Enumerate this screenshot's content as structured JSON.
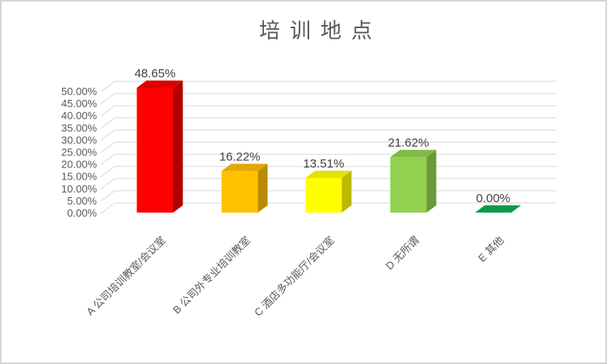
{
  "window": {
    "background": "#FFFFFF",
    "border_color": "#D6D6D6"
  },
  "chart_data": {
    "type": "bar",
    "projection": "3d-column",
    "title": "培训地点",
    "legend": "none",
    "grid": true,
    "gridline_color": "#D9D9D9",
    "axis_text_color": "#595959",
    "data_label_color": "#404040",
    "title_color": "#595959",
    "categories": [
      "A 公司培训教室/会议室",
      "B 公司外专业培训教室",
      "C 酒店多功能厅/会议室",
      "D 无所谓",
      "E 其他"
    ],
    "values": [
      48.65,
      16.22,
      13.51,
      21.62,
      0.0
    ],
    "xlabel": "",
    "ylabel": "",
    "ylim": [
      0,
      50
    ],
    "y_step": 5,
    "y_ticks": [
      "50.00%",
      "45.00%",
      "40.00%",
      "35.00%",
      "30.00%",
      "25.00%",
      "20.00%",
      "15.00%",
      "10.00%",
      "5.00%",
      "0.00%"
    ],
    "series": [
      {
        "category": "A 公司培训教室/会议室",
        "value": 48.65,
        "label": "48.65%",
        "color": {
          "front": "#FF0000",
          "top": "#DD0000",
          "side": "#B30000"
        }
      },
      {
        "category": "B 公司外专业培训教室",
        "value": 16.22,
        "label": "16.22%",
        "color": {
          "front": "#FFC000",
          "top": "#E3A800",
          "side": "#BA8B00"
        }
      },
      {
        "category": "C 酒店多功能厅/会议室",
        "value": 13.51,
        "label": "13.51%",
        "color": {
          "front": "#FFFF00",
          "top": "#E2E200",
          "side": "#BABA00"
        }
      },
      {
        "category": "D 无所谓",
        "value": 21.62,
        "label": "21.62%",
        "color": {
          "front": "#92D050",
          "top": "#81BA45",
          "side": "#6B9B39"
        }
      },
      {
        "category": "E 其他",
        "value": 0.0,
        "label": "0.00%",
        "color": {
          "front": "#00B050",
          "top": "#089C48",
          "side": "#007038"
        }
      }
    ]
  }
}
